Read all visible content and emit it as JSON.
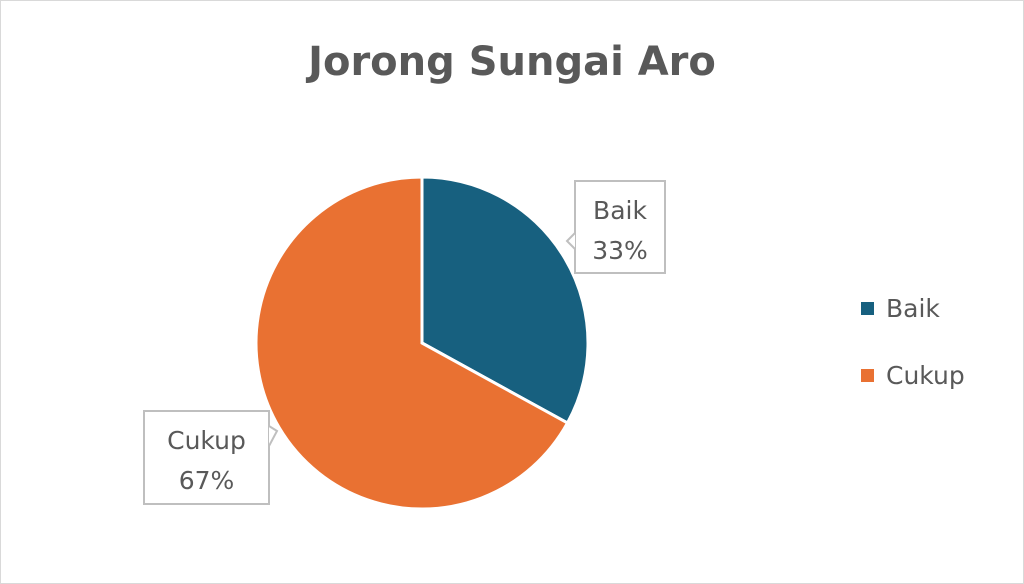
{
  "chart_data": {
    "type": "pie",
    "title": "Jorong Sungai Aro",
    "slices": [
      {
        "label": "Baik",
        "value": 33,
        "percent_label": "33%",
        "color": "#17607f"
      },
      {
        "label": "Cukup",
        "value": 67,
        "percent_label": "67%",
        "color": "#e97132"
      }
    ],
    "start_angle_deg": 0,
    "direction": "clockwise",
    "legend": {
      "position": "right",
      "entries": [
        "Baik",
        "Cukup"
      ]
    },
    "data_labels": "callout"
  }
}
